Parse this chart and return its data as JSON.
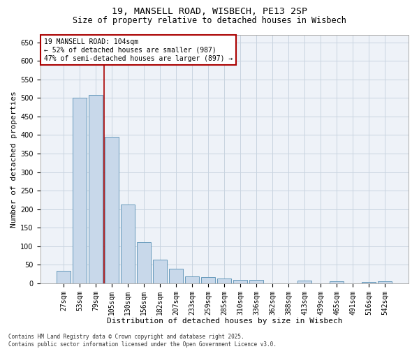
{
  "title1": "19, MANSELL ROAD, WISBECH, PE13 2SP",
  "title2": "Size of property relative to detached houses in Wisbech",
  "xlabel": "Distribution of detached houses by size in Wisbech",
  "ylabel": "Number of detached properties",
  "categories": [
    "27sqm",
    "53sqm",
    "79sqm",
    "105sqm",
    "130sqm",
    "156sqm",
    "182sqm",
    "207sqm",
    "233sqm",
    "259sqm",
    "285sqm",
    "310sqm",
    "336sqm",
    "362sqm",
    "388sqm",
    "413sqm",
    "439sqm",
    "465sqm",
    "491sqm",
    "516sqm",
    "542sqm"
  ],
  "values": [
    33,
    500,
    508,
    395,
    213,
    110,
    63,
    40,
    18,
    17,
    13,
    10,
    9,
    0,
    0,
    8,
    0,
    5,
    0,
    3,
    5
  ],
  "bar_color": "#c8d8ea",
  "bar_edge_color": "#6699bb",
  "vline_pos": 2.5,
  "vline_color": "#aa0000",
  "annotation_line1": "19 MANSELL ROAD: 104sqm",
  "annotation_line2": "← 52% of detached houses are smaller (987)",
  "annotation_line3": "47% of semi-detached houses are larger (897) →",
  "annotation_box_color": "#aa0000",
  "ylim": [
    0,
    670
  ],
  "yticks": [
    0,
    50,
    100,
    150,
    200,
    250,
    300,
    350,
    400,
    450,
    500,
    550,
    600,
    650
  ],
  "grid_color": "#c8d4e0",
  "plot_bg_color": "#eef2f8",
  "footer": "Contains HM Land Registry data © Crown copyright and database right 2025.\nContains public sector information licensed under the Open Government Licence v3.0.",
  "title_fontsize": 9.5,
  "subtitle_fontsize": 8.5,
  "axis_label_fontsize": 8,
  "tick_fontsize": 7,
  "annotation_fontsize": 7,
  "footer_fontsize": 5.5
}
